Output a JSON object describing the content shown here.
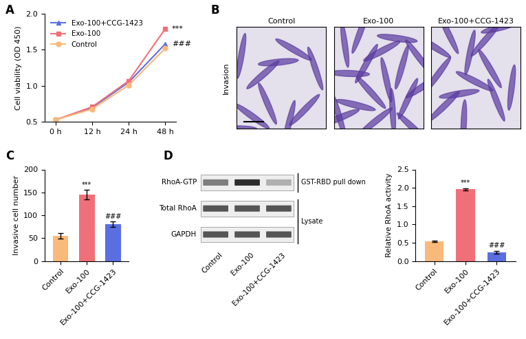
{
  "panel_labels": [
    "A",
    "B",
    "C",
    "D"
  ],
  "chart_data": [
    {
      "type": "line",
      "y_label": "Cell viability (OD 450)",
      "categories": [
        "0 h",
        "12 h",
        "24 h",
        "48 h"
      ],
      "series": [
        {
          "name": "Exo-100+CCG-1423",
          "color": "#5b6ee1",
          "marker": "triangle",
          "line_style": "solid",
          "values": [
            0.53,
            0.7,
            1.05,
            1.58
          ]
        },
        {
          "name": "Exo-100",
          "color": "#f0707a",
          "marker": "square",
          "line_style": "solid",
          "values": [
            0.53,
            0.71,
            1.07,
            1.79
          ]
        },
        {
          "name": "Control",
          "color": "#f9b97a",
          "marker": "circle",
          "line_style": "solid",
          "values": [
            0.53,
            0.68,
            1.01,
            1.52
          ]
        }
      ],
      "ylim": [
        0.5,
        2.0
      ],
      "yticks": [
        {
          "value": 0.5,
          "label": "0.5"
        },
        {
          "value": 1,
          "label": "1.0"
        },
        {
          "value": 1.5,
          "label": "1.5"
        },
        {
          "value": 2,
          "label": "2.0"
        }
      ],
      "legend": "upper left",
      "annotations": [
        {
          "text": "***",
          "series": "Exo-100"
        },
        {
          "text": "###",
          "series": "Exo-100+CCG-1423"
        }
      ]
    },
    {
      "type": "bar",
      "y_label": "Invasive cell number",
      "categories": [
        "Control",
        "Exo-100",
        "Exo-100+CCG-1423"
      ],
      "values": [
        55,
        145,
        80
      ],
      "errors": [
        6,
        10,
        6
      ],
      "colors": [
        "#f9b97a",
        "#f0707a",
        "#5b6ee1"
      ],
      "ylim": [
        0,
        200
      ],
      "yticks": [
        0,
        50,
        100,
        150,
        200
      ],
      "annotations": [
        {
          "text": "***",
          "category": "Exo-100"
        },
        {
          "text": "###",
          "category": "Exo-100+CCG-1423"
        }
      ]
    },
    {
      "type": "bar",
      "y_label": "Relative RhoA activity",
      "categories": [
        "Control",
        "Exo-100",
        "Exo-100+CCG-1423"
      ],
      "values": [
        0.53,
        1.96,
        0.24
      ],
      "errors": [
        0.02,
        0.03,
        0.04
      ],
      "colors": [
        "#f9b97a",
        "#f0707a",
        "#5b6ee1"
      ],
      "ylim": [
        0,
        2.5
      ],
      "yticks": [
        {
          "value": 0,
          "label": "0.0"
        },
        {
          "value": 0.5,
          "label": "0.5"
        },
        {
          "value": 1,
          "label": "1.0"
        },
        {
          "value": 1.5,
          "label": "1.5"
        },
        {
          "value": 2,
          "label": "2.0"
        },
        {
          "value": 2.5,
          "label": "2.5"
        }
      ],
      "annotations": [
        {
          "text": "***",
          "category": "Exo-100"
        },
        {
          "text": "###",
          "category": "Exo-100+CCG-1423"
        }
      ]
    }
  ],
  "images": {
    "row_label": "Invasion",
    "columns": [
      "Control",
      "Exo-100",
      "Exo-100+CCG-1423"
    ]
  },
  "blot": {
    "rows": [
      "RhoA-GTP",
      "Total RhoA",
      "GAPDH"
    ],
    "groups": [
      {
        "label": "GST-RBD pull down",
        "rows": [
          "RhoA-GTP"
        ]
      },
      {
        "label": "Lysate",
        "rows": [
          "Total RhoA",
          "GAPDH"
        ]
      }
    ],
    "lanes": [
      "Control",
      "Exo-100",
      "Exo-100+CCG-1423"
    ]
  }
}
